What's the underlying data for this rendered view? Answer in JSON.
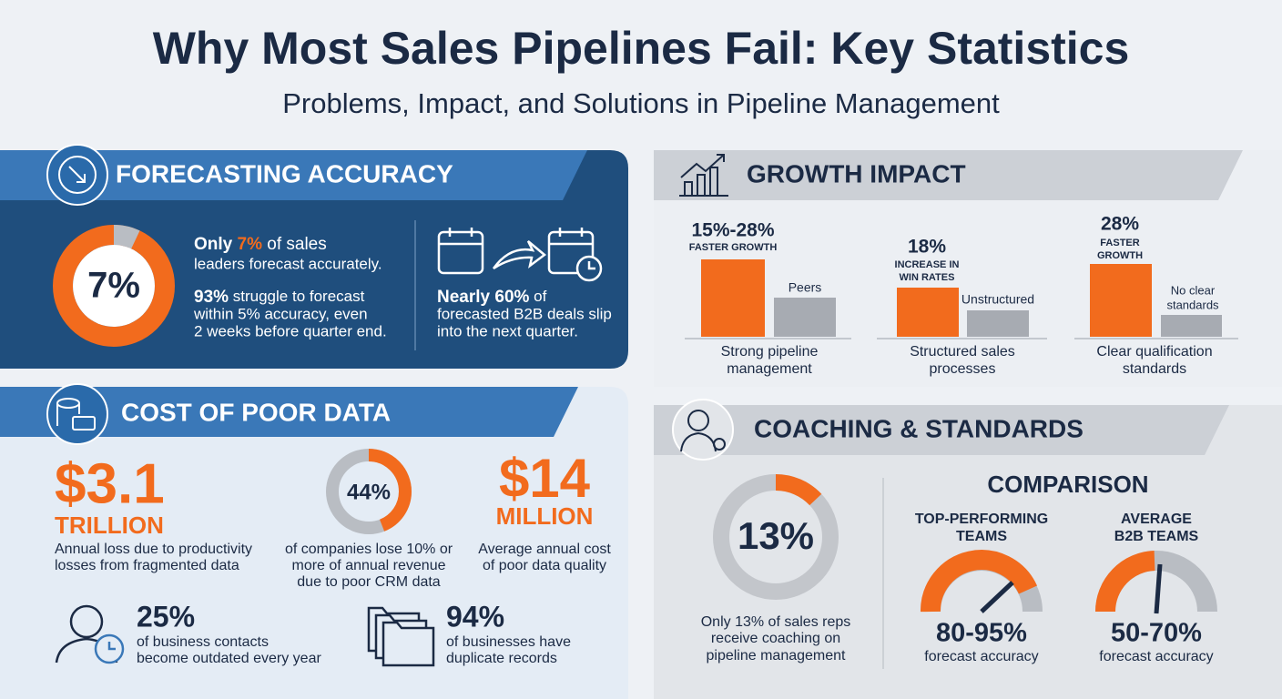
{
  "header": {
    "title": "Why Most Sales Pipelines Fail: Key Statistics",
    "subtitle": "Problems, Impact, and Solutions in Pipeline Management"
  },
  "forecasting": {
    "title": "FORECASTING ACCURACY",
    "donut": {
      "value": 7,
      "label": "7%",
      "color": "#b9bdc3",
      "track": "#f26b1d"
    },
    "stat1": [
      "Only",
      "7%",
      "of sales",
      "leaders forecast accurately."
    ],
    "stat2": [
      "93%",
      "struggle to forecast",
      "within 5% accuracy, even",
      "2 weeks before quarter end."
    ],
    "stat3": [
      "Nearly 60%",
      "of",
      "forecasted B2B deals slip",
      "into the next quarter."
    ]
  },
  "cost": {
    "title": "COST OF POOR DATA",
    "loss": {
      "amount": "$3.1",
      "unit": "TRILLION",
      "desc": [
        "Annual loss due to productivity",
        "losses from fragmented data"
      ]
    },
    "donut": {
      "value": 44,
      "label": "44%",
      "color": "#f26b1d",
      "track": "#b9bdc3",
      "desc": [
        "of companies lose 10% or",
        "more of annual revenue",
        "due to poor CRM data"
      ]
    },
    "annual": {
      "amount": "$14",
      "unit": "MILLION",
      "desc": [
        "Average annual cost",
        "of poor data quality"
      ]
    },
    "contacts": {
      "value": "25%",
      "desc": [
        "of business contacts",
        "become outdated every year"
      ]
    },
    "duplicates": {
      "value": "94%",
      "desc": [
        "of businesses have",
        "duplicate records"
      ]
    }
  },
  "growth": {
    "title": "GROWTH IMPACT",
    "groups": [
      {
        "value": "15%-28%",
        "metric": [
          "FASTER GROWTH"
        ],
        "compare": [
          "Peers"
        ],
        "label": [
          "Strong pipeline",
          "management"
        ]
      },
      {
        "value": "18%",
        "metric": [
          "INCREASE IN",
          "WIN RATES"
        ],
        "compare": [
          "Unstructured"
        ],
        "label": [
          "Structured sales",
          "processes"
        ]
      },
      {
        "value": "28%",
        "metric": [
          "FASTER",
          "GROWTH"
        ],
        "compare": [
          "No clear",
          "standards"
        ],
        "label": [
          "Clear qualification",
          "standards"
        ]
      }
    ]
  },
  "coaching": {
    "title": "COACHING & STANDARDS",
    "donut": {
      "value": 13,
      "label": "13%",
      "color": "#f26b1d",
      "track": "#c3c6cb",
      "desc": [
        "Only 13% of sales reps",
        "receive coaching on",
        "pipeline management"
      ]
    },
    "comparison": {
      "title": "COMPARISON",
      "teams": [
        {
          "name": [
            "TOP-PERFORMING",
            "TEAMS"
          ],
          "value": "80-95%",
          "desc": "forecast accuracy"
        },
        {
          "name": [
            "AVERAGE",
            "B2B TEAMS"
          ],
          "value": "50-70%",
          "desc": "forecast accuracy"
        }
      ]
    }
  }
}
